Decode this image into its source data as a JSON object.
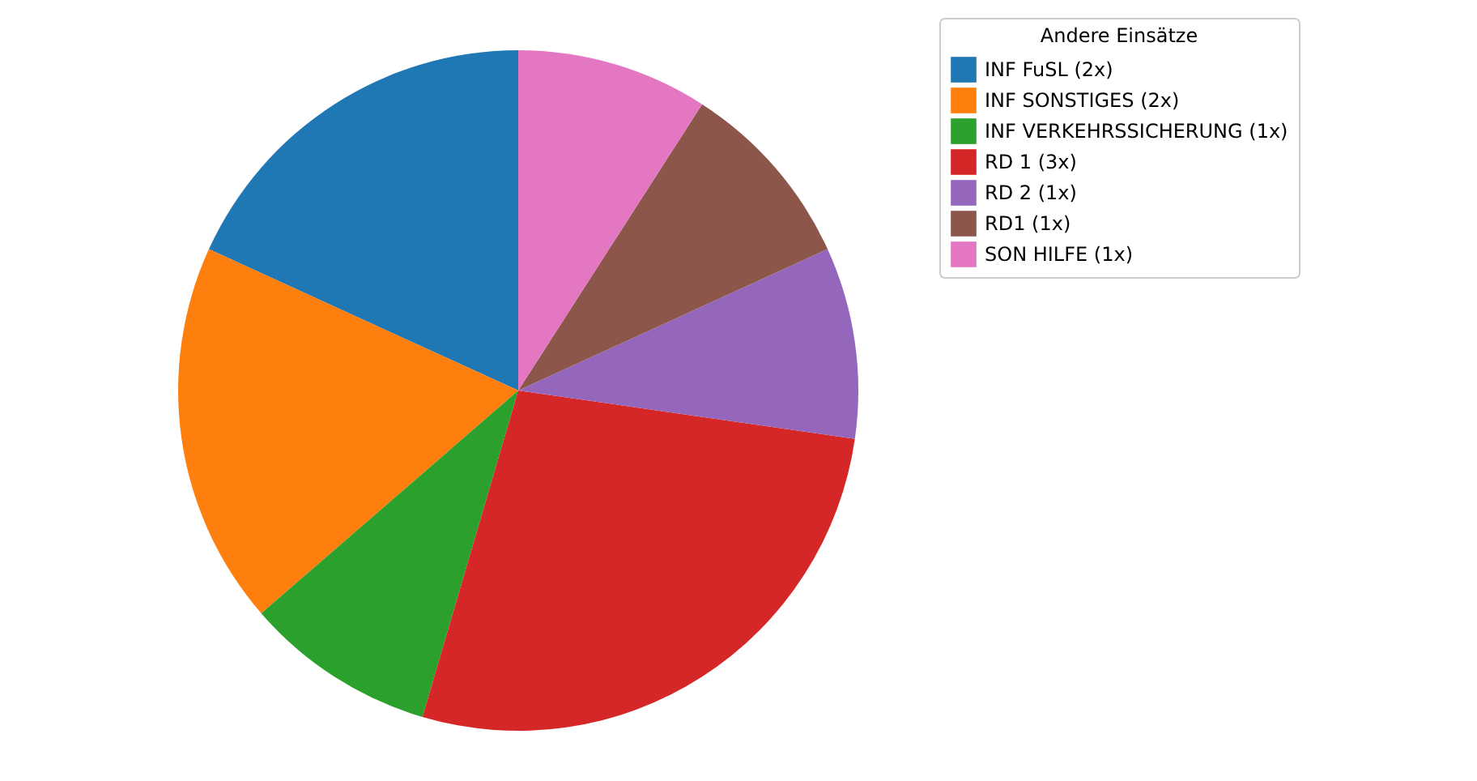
{
  "chart_data": {
    "type": "pie",
    "legend_title": "Andere Einsätze",
    "categories": [
      "INF FuSL (2x)",
      "INF SONSTIGES (2x)",
      "INF VERKEHRSSICHERUNG (1x)",
      "RD 1 (3x)",
      "RD 2 (1x)",
      "RD1 (1x)",
      "SON HILFE (1x)"
    ],
    "values": [
      2,
      2,
      1,
      3,
      1,
      1,
      1
    ],
    "colors": [
      "#1f77b4",
      "#ff7f0e",
      "#2ca02c",
      "#d62728",
      "#9467bd",
      "#8c564b",
      "#e377c2"
    ],
    "legend": "right"
  }
}
